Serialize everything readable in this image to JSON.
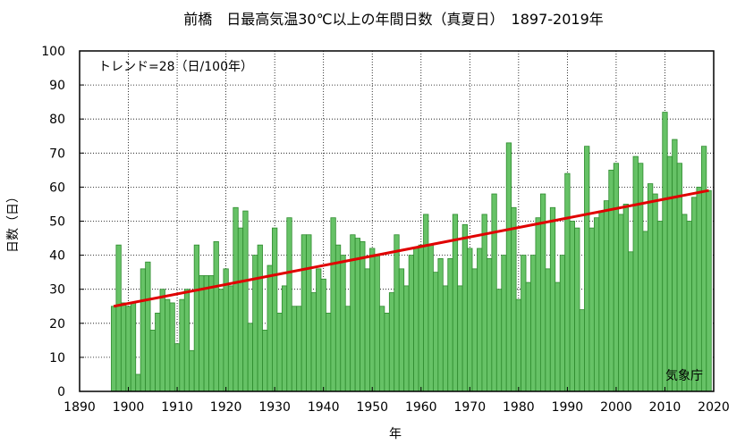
{
  "chart_data": {
    "type": "bar",
    "title": "前橋　日最高気温30℃以上の年間日数（真夏日）　1897-2019年",
    "xlabel": "年",
    "ylabel": "日数（日）",
    "xlim": [
      1890,
      2020
    ],
    "ylim": [
      0,
      100
    ],
    "xticks": [
      1890,
      1900,
      1910,
      1920,
      1930,
      1940,
      1950,
      1960,
      1970,
      1980,
      1990,
      2000,
      2010,
      2020
    ],
    "yticks": [
      0,
      10,
      20,
      30,
      40,
      50,
      60,
      70,
      80,
      90,
      100
    ],
    "grid": true,
    "trend_label": "トレンド=28（日/100年）",
    "source_label": "気象庁",
    "bar_color": "#66c266",
    "bar_edge_color": "#2e8b2e",
    "trend_color": "#e00000",
    "trend": {
      "x": [
        1897,
        2019
      ],
      "y": [
        25,
        59
      ]
    },
    "x": [
      1897,
      1898,
      1899,
      1900,
      1901,
      1902,
      1903,
      1904,
      1905,
      1906,
      1907,
      1908,
      1909,
      1910,
      1911,
      1912,
      1913,
      1914,
      1915,
      1916,
      1917,
      1918,
      1919,
      1920,
      1921,
      1922,
      1923,
      1924,
      1925,
      1926,
      1927,
      1928,
      1929,
      1930,
      1931,
      1932,
      1933,
      1934,
      1935,
      1936,
      1937,
      1938,
      1939,
      1940,
      1941,
      1942,
      1943,
      1944,
      1945,
      1946,
      1947,
      1948,
      1949,
      1950,
      1951,
      1952,
      1953,
      1954,
      1955,
      1956,
      1957,
      1958,
      1959,
      1960,
      1961,
      1962,
      1963,
      1964,
      1965,
      1966,
      1967,
      1968,
      1969,
      1970,
      1971,
      1972,
      1973,
      1974,
      1975,
      1976,
      1977,
      1978,
      1979,
      1980,
      1981,
      1982,
      1983,
      1984,
      1985,
      1986,
      1987,
      1988,
      1989,
      1990,
      1991,
      1992,
      1993,
      1994,
      1995,
      1996,
      1997,
      1998,
      1999,
      2000,
      2001,
      2002,
      2003,
      2004,
      2005,
      2006,
      2007,
      2008,
      2009,
      2010,
      2011,
      2012,
      2013,
      2014,
      2015,
      2016,
      2017,
      2018,
      2019
    ],
    "values": [
      25,
      43,
      26,
      25,
      26,
      5,
      36,
      38,
      18,
      23,
      30,
      27,
      26,
      14,
      27,
      30,
      12,
      43,
      34,
      34,
      34,
      44,
      30,
      36,
      31,
      54,
      48,
      53,
      20,
      40,
      43,
      18,
      37,
      48,
      23,
      31,
      51,
      25,
      25,
      46,
      46,
      29,
      36,
      33,
      23,
      51,
      43,
      40,
      25,
      46,
      45,
      44,
      36,
      42,
      40,
      25,
      23,
      29,
      46,
      36,
      31,
      40,
      42,
      43,
      52,
      43,
      35,
      39,
      31,
      39,
      52,
      31,
      49,
      42,
      36,
      42,
      52,
      39,
      58,
      30,
      40,
      73,
      54,
      27,
      40,
      32,
      40,
      51,
      58,
      36,
      54,
      32,
      40,
      64,
      50,
      48,
      24,
      72,
      48,
      51,
      53,
      56,
      65,
      67,
      52,
      55,
      41,
      69,
      67,
      47,
      61,
      58,
      50,
      82,
      69,
      74,
      67,
      52,
      50,
      57,
      60,
      72,
      59
    ]
  }
}
